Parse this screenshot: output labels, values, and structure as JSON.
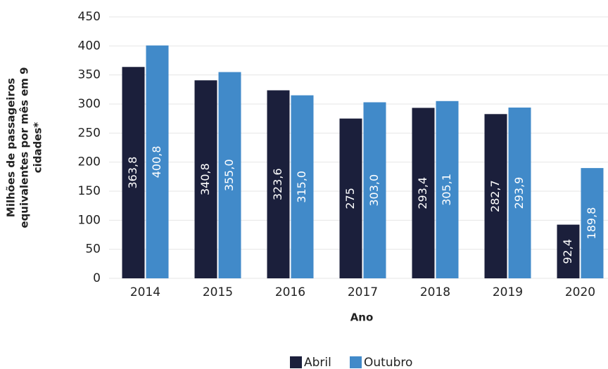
{
  "chart_data": {
    "type": "bar",
    "ylabel": "Milhões de passageiros equivalentes por mês em 9 cidades*",
    "xlabel": "Ano",
    "categories": [
      "2014",
      "2015",
      "2016",
      "2017",
      "2018",
      "2019",
      "2020"
    ],
    "series": [
      {
        "name": "Abril",
        "color": "#1b1f3b",
        "values": [
          363.8,
          340.8,
          323.6,
          275,
          293.4,
          282.7,
          92.4
        ],
        "value_labels": [
          "363,8",
          "340,8",
          "323,6",
          "275",
          "293,4",
          "282,7",
          "92,4"
        ]
      },
      {
        "name": "Outubro",
        "color": "#418ac9",
        "values": [
          400.8,
          355.0,
          315.0,
          303.0,
          305.1,
          293.9,
          189.8
        ],
        "value_labels": [
          "400,8",
          "355,0",
          "315,0",
          "303,0",
          "305,1",
          "293,9",
          "189,8"
        ]
      }
    ],
    "ylim": [
      0,
      450
    ],
    "yticks": [
      0,
      50,
      100,
      150,
      200,
      250,
      300,
      350,
      400,
      450
    ],
    "grid": true,
    "legend": "bottom"
  }
}
